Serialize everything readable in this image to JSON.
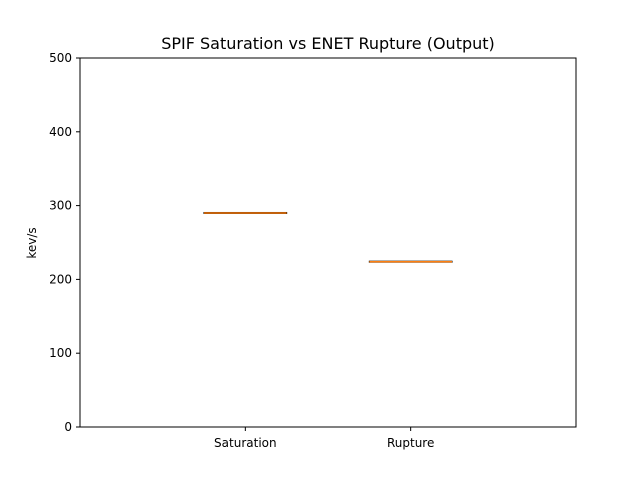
{
  "chart_data": {
    "type": "box",
    "title": "SPIF Saturation vs ENET Rupture (Output)",
    "xlabel": "",
    "ylabel": "kev/s",
    "ylim": [
      0,
      500
    ],
    "yticks": [
      0,
      100,
      200,
      300,
      400,
      500
    ],
    "categories": [
      "Saturation",
      "Rupture"
    ],
    "series": [
      {
        "values": [
          {
            "min": 290,
            "q1": 290,
            "median": 290,
            "q3": 290,
            "max": 290
          },
          {
            "min": 224,
            "q1": 224,
            "median": 224,
            "q3": 224,
            "max": 224
          }
        ]
      }
    ],
    "grid": false,
    "colors": {
      "box": "#000000",
      "median": "#ff7f0e"
    }
  }
}
